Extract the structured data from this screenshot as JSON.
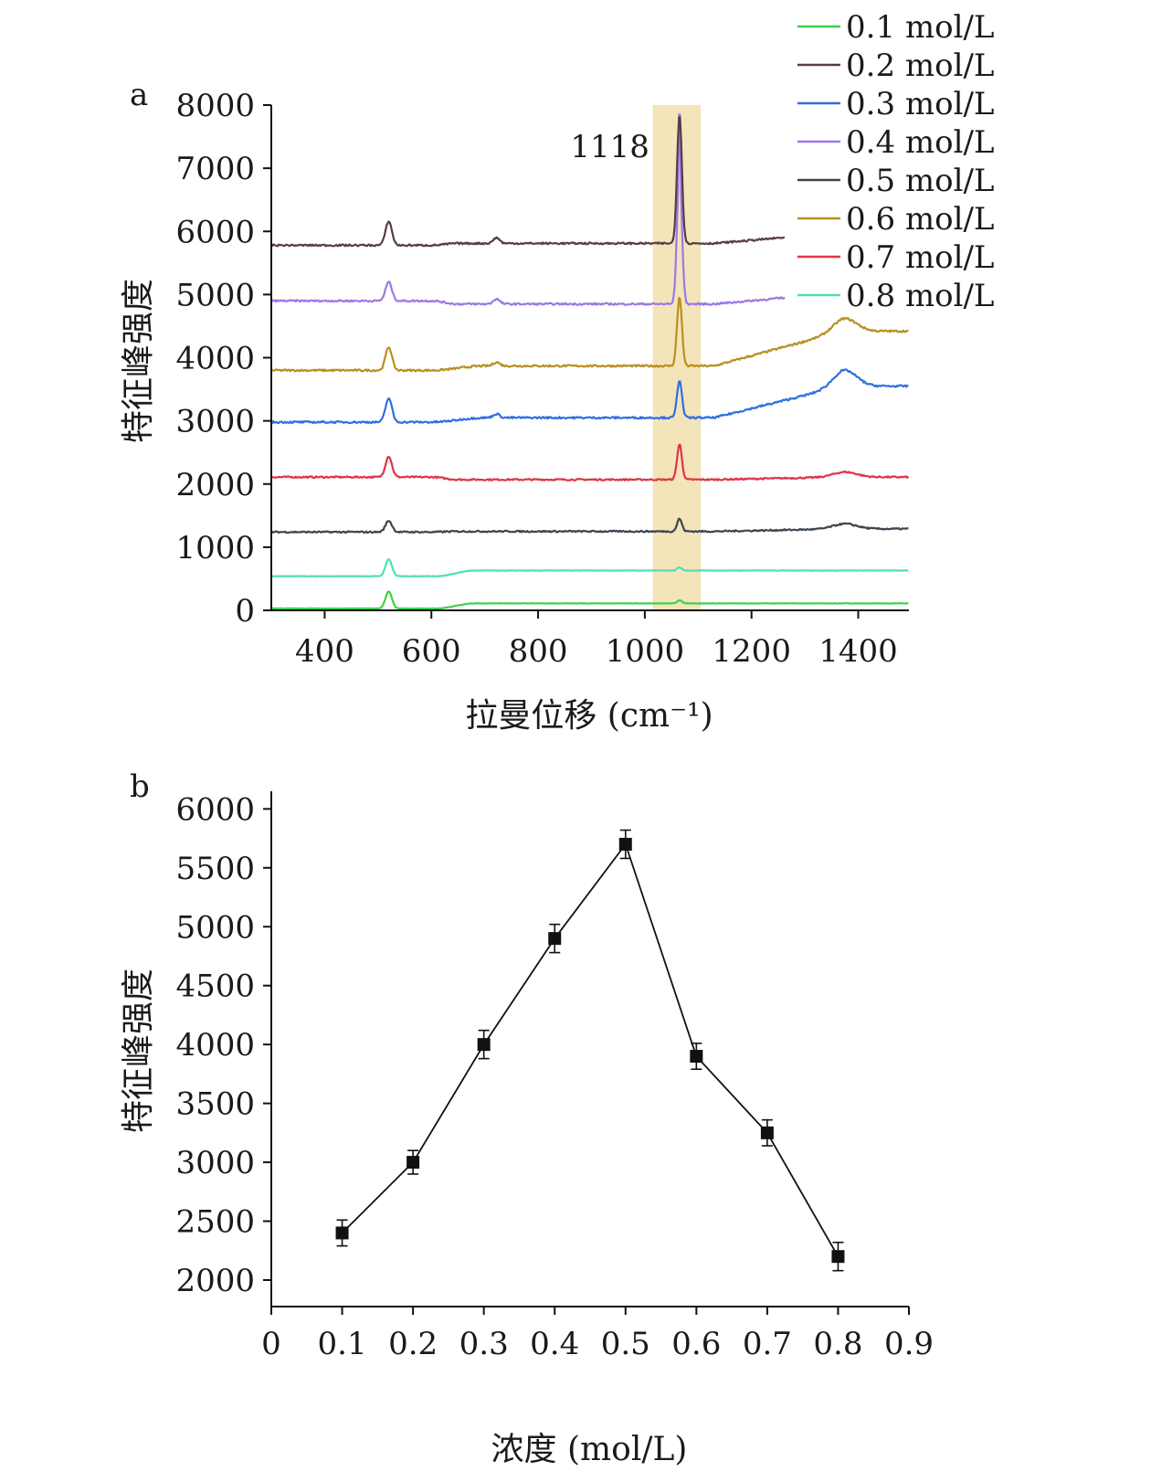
{
  "chart_data": [
    {
      "panel_label": "a",
      "type": "line",
      "xlabel": "拉曼位移 (cm⁻¹)",
      "ylabel": "特征峰强度",
      "xlim": [
        300,
        1495
      ],
      "ylim": [
        0,
        8000
      ],
      "x_ticks": [
        400,
        600,
        800,
        1000,
        1200,
        1400
      ],
      "y_ticks": [
        0,
        1000,
        2000,
        3000,
        4000,
        5000,
        6000,
        7000,
        8000
      ],
      "highlight_band": {
        "x_start": 1015,
        "x_end": 1105,
        "color": "#f2dfae"
      },
      "annotation": {
        "text": "1118",
        "x": 1000,
        "y": 7350
      },
      "legend_position": "top-right",
      "series": [
        {
          "name": "0.8 mol/L",
          "color": "#4fe0b0",
          "baseline_pre": 540,
          "baseline_post": 630,
          "rise": [
            610,
            680
          ],
          "drift": 0,
          "hump": 0,
          "peak520": 270,
          "peak720": 0,
          "peak1065": 50,
          "end_x": 1495,
          "noise": 3
        },
        {
          "name": "0.7 mol/L",
          "color": "#e03447",
          "baseline_pre": 2110,
          "baseline_post": 2070,
          "rise": [
            600,
            650
          ],
          "drift": 40,
          "hump": 80,
          "peak520": 330,
          "peak720": 0,
          "peak1065": 560,
          "end_x": 1495,
          "noise": 12
        },
        {
          "name": "0.6 mol/L",
          "color": "#b8901e",
          "baseline_pre": 3800,
          "baseline_post": 3870,
          "rise": [
            600,
            700
          ],
          "drift": 550,
          "hump": 200,
          "peak520": 370,
          "peak720": 60,
          "peak1065": 1100,
          "end_x": 1495,
          "noise": 15
        },
        {
          "name": "0.5 mol/L",
          "color": "#3c4650",
          "baseline_pre": 1240,
          "baseline_post": 1250,
          "rise": [
            600,
            650
          ],
          "drift": 40,
          "hump": 80,
          "peak520": 180,
          "peak720": 0,
          "peak1065": 200,
          "end_x": 1495,
          "noise": 12
        },
        {
          "name": "0.4 mol/L",
          "color": "#9b78e8",
          "baseline_pre": 4900,
          "baseline_post": 4850,
          "rise": [
            600,
            650
          ],
          "drift": 180,
          "hump": 0,
          "peak520": 300,
          "peak720": 80,
          "peak1065": 2150,
          "end_x": 1262,
          "noise": 14
        },
        {
          "name": "0.3 mol/L",
          "color": "#2f6fe0",
          "baseline_pre": 2980,
          "baseline_post": 3050,
          "rise": [
            600,
            700
          ],
          "drift": 500,
          "hump": 250,
          "peak520": 380,
          "peak720": 60,
          "peak1065": 600,
          "end_x": 1495,
          "noise": 15
        },
        {
          "name": "0.2 mol/L",
          "color": "#5a3c46",
          "baseline_pre": 5780,
          "baseline_post": 5810,
          "rise": [
            600,
            650
          ],
          "drift": 170,
          "hump": 0,
          "peak520": 380,
          "peak720": 90,
          "peak1065": 2050,
          "end_x": 1262,
          "noise": 14
        },
        {
          "name": "0.1 mol/L",
          "color": "#3ed14d",
          "baseline_pre": 30,
          "baseline_post": 110,
          "rise": [
            610,
            680
          ],
          "drift": 0,
          "hump": 0,
          "peak520": 270,
          "peak720": 0,
          "peak1065": 50,
          "end_x": 1495,
          "noise": 3
        }
      ],
      "highlighted_peak_top_y": 7850
    },
    {
      "panel_label": "b",
      "type": "line",
      "xlabel": "浓度 (mol/L)",
      "ylabel": "特征峰强度",
      "xlim": [
        0,
        0.9
      ],
      "ylim": [
        1775,
        6150
      ],
      "x_ticks": [
        0,
        0.1,
        0.2,
        0.3,
        0.4,
        0.5,
        0.6,
        0.7,
        0.8,
        0.9
      ],
      "y_ticks": [
        2000,
        2500,
        3000,
        3500,
        4000,
        4500,
        5000,
        5500,
        6000
      ],
      "marker": "square",
      "color": "#111111",
      "x": [
        0.1,
        0.2,
        0.3,
        0.4,
        0.5,
        0.6,
        0.7,
        0.8
      ],
      "y": [
        2400,
        3000,
        4000,
        4900,
        5700,
        3900,
        3250,
        2200
      ],
      "error": [
        110,
        100,
        120,
        120,
        120,
        110,
        110,
        120
      ]
    }
  ]
}
